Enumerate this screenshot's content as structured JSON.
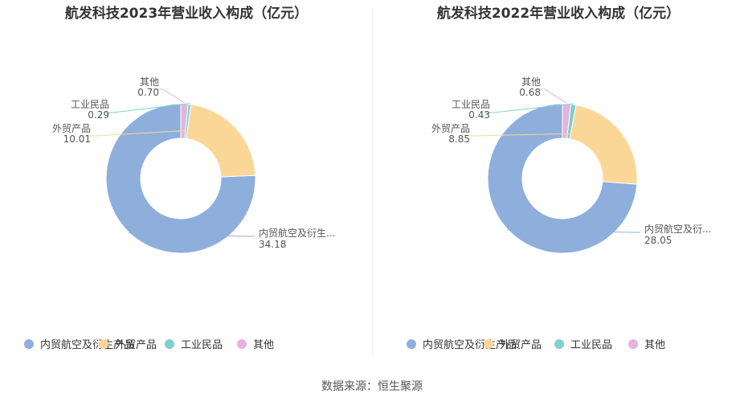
{
  "source_text": "数据来源：恒生聚源",
  "chart_data": [
    {
      "type": "pie",
      "title": "航发科技2023年营业收入构成（亿元）",
      "categories": [
        "内贸航空及衍生产品",
        "外贸产品",
        "工业民品",
        "其他"
      ],
      "slice_labels": [
        "内贸航空及衍生...",
        "外贸产品",
        "工业民品",
        "其他"
      ],
      "values": [
        34.18,
        10.01,
        0.29,
        0.7
      ],
      "value_labels": [
        "34.18",
        "10.01",
        "0.29",
        "0.70"
      ],
      "colors": [
        "#8eaedc",
        "#fbd797",
        "#7ed1d0",
        "#e5b3dc"
      ],
      "legend": "bottom"
    },
    {
      "type": "pie",
      "title": "航发科技2022年营业收入构成（亿元）",
      "categories": [
        "内贸航空及衍生产品",
        "外贸产品",
        "工业民品",
        "其他"
      ],
      "slice_labels": [
        "内贸航空及衍...",
        "外贸产品",
        "工业民品",
        "其他"
      ],
      "values": [
        28.05,
        8.85,
        0.43,
        0.68
      ],
      "value_labels": [
        "28.05",
        "8.85",
        "0.43",
        "0.68"
      ],
      "colors": [
        "#8eaedc",
        "#fbd797",
        "#7ed1d0",
        "#e5b3dc"
      ],
      "legend": "bottom"
    }
  ]
}
